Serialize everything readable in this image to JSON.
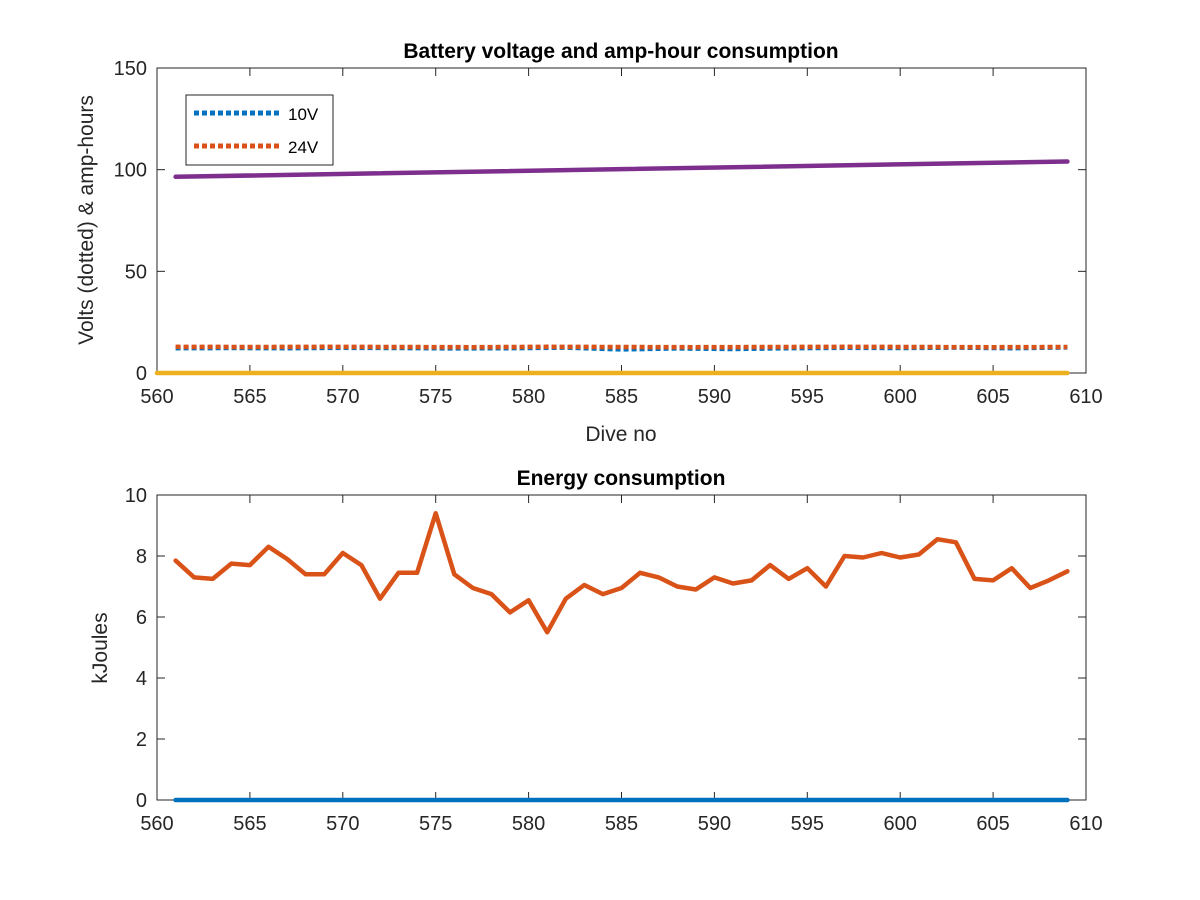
{
  "chart_data": [
    {
      "type": "line",
      "title": "Battery voltage and amp-hour consumption",
      "xlabel": "Dive no",
      "ylabel": "Volts (dotted) & amp-hours",
      "xlim": [
        560,
        610
      ],
      "ylim": [
        0,
        150
      ],
      "xticks": [
        560,
        565,
        570,
        575,
        580,
        585,
        590,
        595,
        600,
        605,
        610
      ],
      "yticks": [
        0,
        50,
        100,
        150
      ],
      "grid": false,
      "legend_position": "top-left",
      "series": [
        {
          "name": "10V",
          "style": "dotted",
          "color": "#0072BD",
          "in_legend": true,
          "x": [
            561,
            564,
            567,
            570,
            573,
            576,
            579,
            582,
            585,
            588,
            591,
            594,
            597,
            600,
            603,
            606,
            609
          ],
          "y": [
            12.2,
            12.3,
            12.2,
            12.4,
            12.3,
            12.1,
            12.2,
            12.5,
            11.6,
            12.1,
            11.8,
            12.2,
            12.4,
            12.3,
            12.5,
            12.2,
            12.6
          ]
        },
        {
          "name": "24V",
          "style": "dotted",
          "color": "#D95319",
          "in_legend": true,
          "x": [
            561,
            565,
            569,
            573,
            577,
            581,
            585,
            589,
            593,
            597,
            601,
            605,
            609
          ],
          "y": [
            12.9,
            12.8,
            12.9,
            12.8,
            12.7,
            12.9,
            12.8,
            12.7,
            12.8,
            12.9,
            12.8,
            12.7,
            12.8
          ]
        },
        {
          "style": "solid",
          "color": "#7E2F8E",
          "in_legend": false,
          "x": [
            561,
            609
          ],
          "y": [
            96.5,
            104
          ]
        },
        {
          "style": "solid",
          "color": "#EDB120",
          "in_legend": false,
          "x": [
            560,
            609
          ],
          "y": [
            0,
            0
          ]
        }
      ]
    },
    {
      "type": "line",
      "title": "Energy consumption",
      "xlabel": "",
      "ylabel": "kJoules",
      "xlim": [
        560,
        610
      ],
      "ylim": [
        0,
        10
      ],
      "xticks": [
        560,
        565,
        570,
        575,
        580,
        585,
        590,
        595,
        600,
        605,
        610
      ],
      "yticks": [
        0,
        2,
        4,
        6,
        8,
        10
      ],
      "grid": false,
      "series": [
        {
          "style": "solid",
          "color": "#D95319",
          "x": [
            561,
            562,
            563,
            564,
            565,
            566,
            567,
            568,
            569,
            570,
            571,
            572,
            573,
            574,
            575,
            576,
            577,
            578,
            579,
            580,
            581,
            582,
            583,
            584,
            585,
            586,
            587,
            588,
            589,
            590,
            591,
            592,
            593,
            594,
            595,
            596,
            597,
            598,
            599,
            600,
            601,
            602,
            603,
            604,
            605,
            606,
            607,
            608,
            609
          ],
          "y": [
            7.85,
            7.3,
            7.25,
            7.75,
            7.7,
            8.3,
            7.9,
            7.4,
            7.4,
            8.1,
            7.7,
            6.6,
            7.45,
            7.45,
            9.4,
            7.4,
            6.95,
            6.75,
            6.15,
            6.55,
            5.5,
            6.6,
            7.05,
            6.75,
            6.95,
            7.45,
            7.3,
            7.0,
            6.9,
            7.3,
            7.1,
            7.2,
            7.7,
            7.25,
            7.6,
            7.0,
            8.0,
            7.95,
            8.1,
            7.95,
            8.05,
            8.55,
            8.45,
            7.25,
            7.2,
            7.6,
            6.95,
            7.2,
            7.5
          ]
        },
        {
          "style": "solid",
          "color": "#0072BD",
          "x": [
            561,
            609
          ],
          "y": [
            0,
            0
          ]
        }
      ]
    }
  ]
}
